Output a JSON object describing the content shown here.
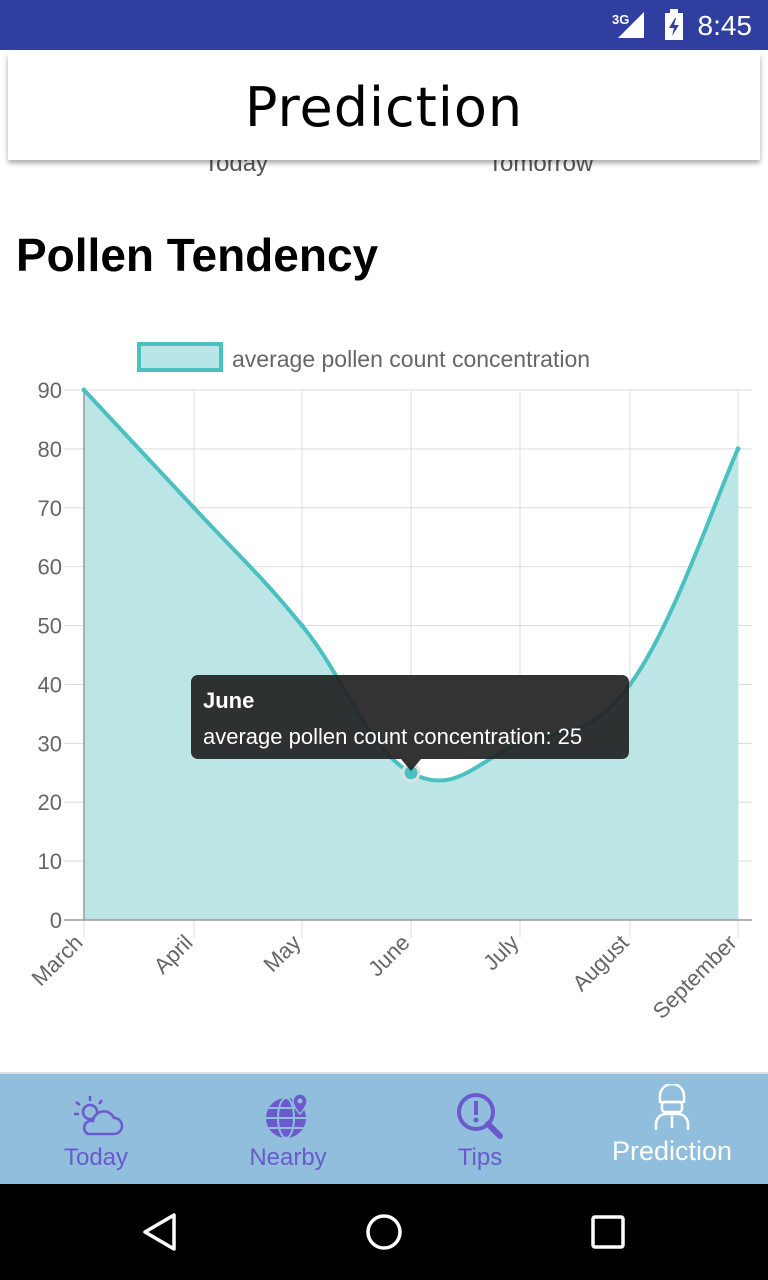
{
  "status_bar": {
    "network": "3G",
    "time": "8:45"
  },
  "header": {
    "title": "Prediction"
  },
  "peek_tabs": {
    "left": "Today",
    "right": "Tomorrow"
  },
  "section": {
    "title": "Pollen Tendency"
  },
  "colors": {
    "status_bar": "#303f9f",
    "line": "#4bc0c0",
    "fill": "#b8e5e5",
    "nav_bg": "#90bedc",
    "nav_text": "#6a5acd",
    "tooltip_bg": "#222222"
  },
  "chart_data": {
    "type": "area",
    "categories": [
      "March",
      "April",
      "May",
      "June",
      "July",
      "August",
      "September"
    ],
    "series": [
      {
        "name": "average pollen count concentration",
        "values": [
          90,
          70,
          50,
          25,
          30,
          40,
          80
        ]
      }
    ],
    "ylim": [
      0,
      90
    ],
    "yticks": [
      0,
      10,
      20,
      30,
      40,
      50,
      60,
      70,
      80,
      90
    ],
    "grid": true,
    "legend_position": "top",
    "tooltip": {
      "title": "June",
      "body": "average pollen count concentration: 25",
      "index": 3
    }
  },
  "bottom_nav": {
    "items": [
      {
        "label": "Today",
        "icon": "weather-icon",
        "active": false
      },
      {
        "label": "Nearby",
        "icon": "globe-pin-icon",
        "active": false
      },
      {
        "label": "Tips",
        "icon": "search-info-icon",
        "active": false
      },
      {
        "label": "Prediction",
        "icon": "doctor-icon",
        "active": true
      }
    ]
  },
  "system_nav": {
    "buttons": [
      "back-icon",
      "home-icon",
      "recents-icon"
    ]
  }
}
